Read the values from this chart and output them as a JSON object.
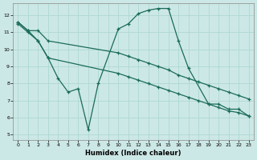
{
  "xlabel": "Humidex (Indice chaleur)",
  "xlim": [
    -0.5,
    23.5
  ],
  "ylim": [
    4.7,
    12.7
  ],
  "yticks": [
    5,
    6,
    7,
    8,
    9,
    10,
    11,
    12
  ],
  "xticks": [
    0,
    1,
    2,
    3,
    4,
    5,
    6,
    7,
    8,
    9,
    10,
    11,
    12,
    13,
    14,
    15,
    16,
    17,
    18,
    19,
    20,
    21,
    22,
    23
  ],
  "bg_color": "#cce8e6",
  "line_color": "#1a6b5a",
  "grid_color": "#aed8d4",
  "series": [
    {
      "x": [
        0,
        1,
        2,
        3,
        10,
        11,
        12,
        13,
        14,
        15,
        16,
        17,
        18,
        19,
        20,
        21,
        22,
        23
      ],
      "y": [
        11.6,
        11.1,
        11.1,
        10.5,
        9.8,
        9.6,
        9.4,
        9.2,
        9.0,
        8.8,
        8.5,
        8.3,
        8.1,
        7.9,
        7.7,
        7.5,
        7.3,
        7.1
      ]
    },
    {
      "x": [
        0,
        1,
        2,
        3,
        10,
        11,
        12,
        13,
        14,
        15,
        16,
        17,
        18,
        19,
        20,
        21,
        22,
        23
      ],
      "y": [
        11.5,
        11.0,
        10.5,
        9.5,
        8.6,
        8.4,
        8.2,
        8.0,
        7.8,
        7.6,
        7.4,
        7.2,
        7.0,
        6.8,
        6.6,
        6.4,
        6.3,
        6.1
      ]
    },
    {
      "x": [
        0,
        1,
        2,
        3,
        4,
        5,
        6,
        7,
        8,
        10,
        11,
        12,
        13,
        14,
        15,
        16,
        17,
        19,
        20,
        21,
        22,
        23
      ],
      "y": [
        11.6,
        11.1,
        10.5,
        9.5,
        8.3,
        7.5,
        7.7,
        5.3,
        8.0,
        11.2,
        11.5,
        12.1,
        12.3,
        12.4,
        12.4,
        10.5,
        8.9,
        6.8,
        6.8,
        6.5,
        6.5,
        6.1
      ]
    }
  ]
}
